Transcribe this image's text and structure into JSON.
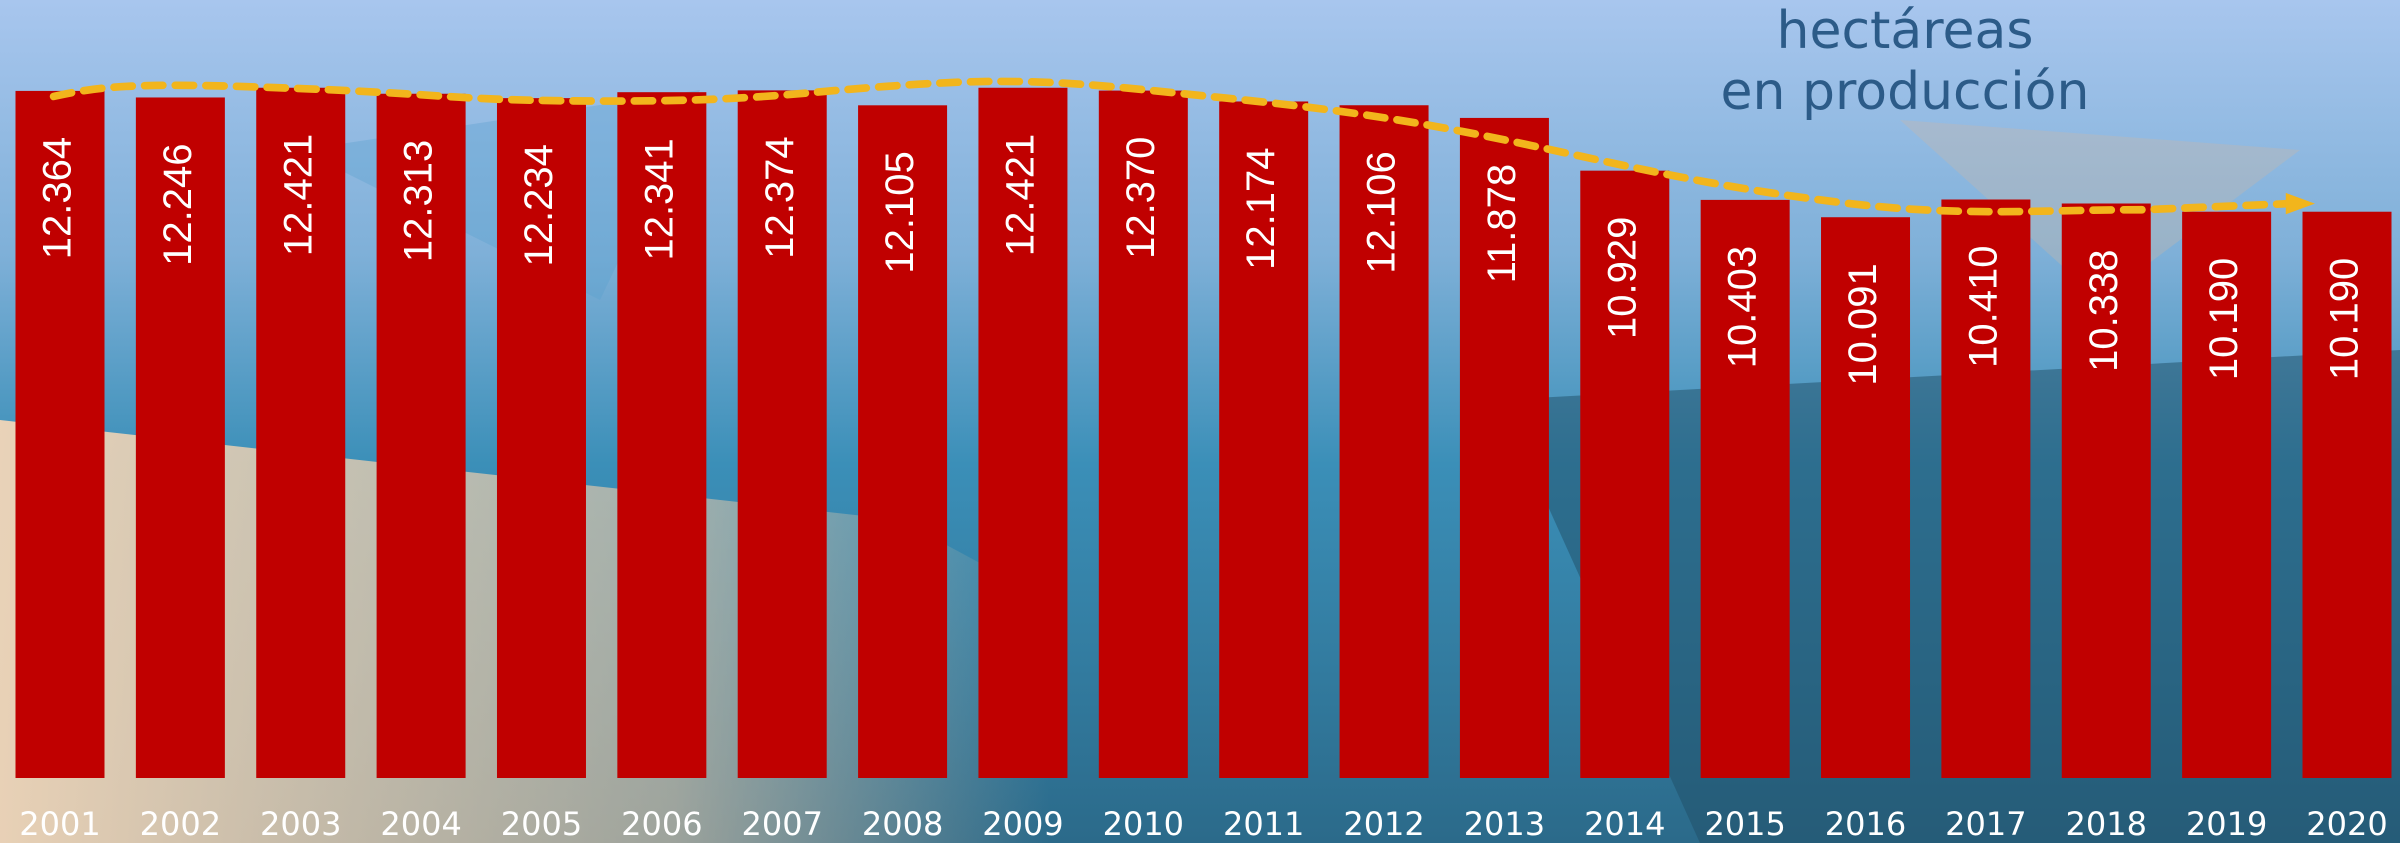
{
  "chart_data": {
    "type": "bar",
    "title": [
      "hectáreas",
      "en producción"
    ],
    "categories": [
      "2001",
      "2002",
      "2003",
      "2004",
      "2005",
      "2006",
      "2007",
      "2008",
      "2009",
      "2010",
      "2011",
      "2012",
      "2013",
      "2014",
      "2015",
      "2016",
      "2017",
      "2018",
      "2019",
      "2020"
    ],
    "values": [
      12364,
      12246,
      12421,
      12313,
      12234,
      12341,
      12374,
      12105,
      12421,
      12370,
      12174,
      12106,
      11878,
      10929,
      10403,
      10091,
      10410,
      10338,
      10190,
      10190
    ],
    "value_labels": [
      "12.364",
      "12.246",
      "12.421",
      "12.313",
      "12.234",
      "12.341",
      "12.374",
      "12.105",
      "12.421",
      "12.370",
      "12.174",
      "12.106",
      "11.878",
      "10.929",
      "10.403",
      "10.091",
      "10.410",
      "10.338",
      "10.190",
      "10.190"
    ],
    "color": "#c00000",
    "ylim": [
      0,
      14000
    ]
  }
}
